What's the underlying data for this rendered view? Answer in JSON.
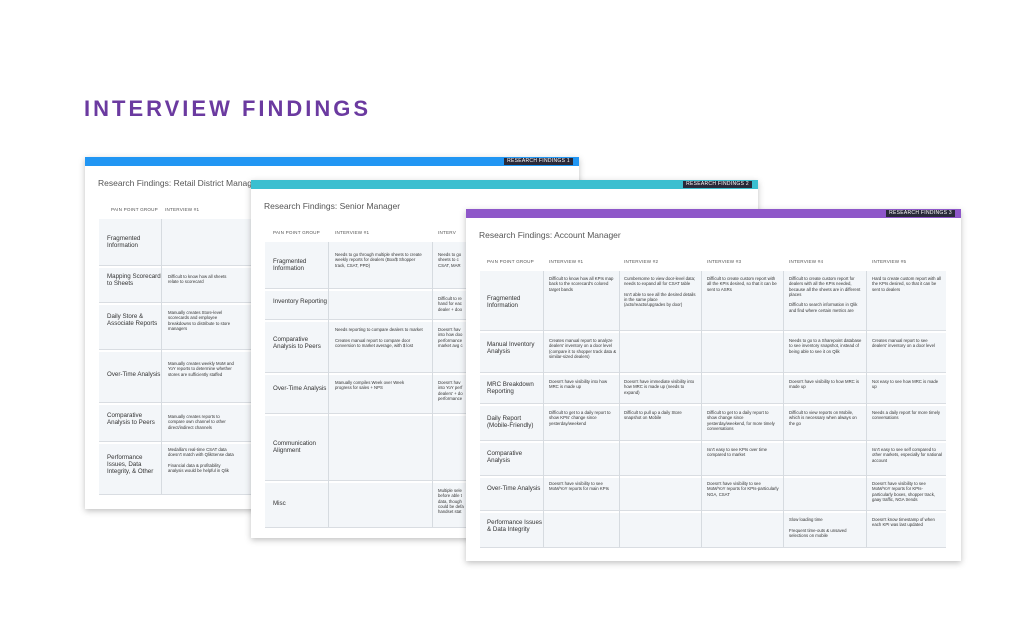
{
  "page_title": "INTERVIEW FINDINGS",
  "card1": {
    "badge": "RESEARCH FINDINGS 1",
    "title": "Research Findings: Retail District Manager",
    "headers": [
      "PAIN POINT GROUP",
      "INTERVIEW #1"
    ],
    "rows": [
      {
        "label": "Fragmented Information",
        "cells": [
          ""
        ]
      },
      {
        "label": "Mapping Scorecard to Sheets",
        "cells": [
          "Difficult to know how all sheets relate to scorecard"
        ]
      },
      {
        "label": "Daily Store & Associate Reports",
        "cells": [
          "Manually creates Store-level scorecards and employee breakdowns to distribute to store managers"
        ]
      },
      {
        "label": "Over-Time Analysis",
        "cells": [
          "Manually creates weekly MoM and YoY reports to determine whether stores are sufficiently staffed"
        ]
      },
      {
        "label": "Comparative Analysis to Peers",
        "cells": [
          "Manually creates reports to compare own channel to other direct/indirect channels"
        ]
      },
      {
        "label": "Performance Issues, Data Integrity, & Other",
        "cells": [
          "Medallia's real-time CSAT data doesn't match with QlikSense data\n\nFinancial data & profitability analysis would be helpful in Qlik"
        ]
      }
    ]
  },
  "card2": {
    "badge": "RESEARCH FINDINGS 2",
    "title": "Research Findings: Senior Manager",
    "headers": [
      "PAIN POINT GROUP",
      "INTERVIEW #1",
      "INTERV"
    ],
    "rows": [
      {
        "label": "Fragmented Information",
        "cells": [
          "Needs to go through multiple sheets to create weekly reports for dealers (Box/$ Shopper track, CSAT, PPD)",
          "Needs to go\nsheets to c\nCSAT, MAR"
        ]
      },
      {
        "label": "Inventory Reporting",
        "cells": [
          "",
          "Difficult to re\nhand for eac\ndealer + doo"
        ]
      },
      {
        "label": "Comparative Analysis to Peers",
        "cells": [
          "Needs reporting to compare dealers to market\n\nCreates manual report to compare door conversion to market average, with $ lost",
          "Doesn't hav\ninto how doo\nperformance\nmarket avg c"
        ]
      },
      {
        "label": "Over-Time Analysis",
        "cells": [
          "Manually compiles Week over Week progress for sales + NPS",
          "Doesn't hav\ninto YoY perf\ndealers' + do\nperformance"
        ]
      },
      {
        "label": "Communication Alignment",
        "cells": [
          "",
          ""
        ]
      },
      {
        "label": "Misc",
        "cells": [
          "",
          "Multiple sele\nbefore able t\ndata, though\ncould be defa\nhandset stat"
        ]
      }
    ]
  },
  "card3": {
    "badge": "RESEARCH FINDINGS 3",
    "title": "Research Findings: Account Manager",
    "headers": [
      "PAIN POINT GROUP",
      "INTERVIEW #1",
      "INTERVIEW #2",
      "INTERVIEW #3",
      "INTERVIEW #4",
      "INTERVIEW #5"
    ],
    "rows": [
      {
        "label": "Fragmented Information",
        "cells": [
          "Difficult to know how all KPIs map back to the scorecard's colored target bands",
          "Cumbersome to view door-level data; needs to expand all for CSAT table\n\nIsn't able to see all the desired details in the same place (acts/reacts/upgrades by door)",
          "Difficult to create custom report with all the KPIs desired, so that it can be sent to ASRs",
          "Difficult to create custom report for dealers with all the KPIs needed, because all the sheets are in different places\n\nDifficult to search information in Qlik and find where certain metrics are",
          "Hard to create custom report with all the KPIs desired, so that it can be sent to dealers"
        ]
      },
      {
        "label": "Manual Inventory Analysis",
        "cells": [
          "Creates manual report to analyze dealers' inventory on a door level (compare it to shopper track data & similar-sized dealers)",
          "",
          "",
          "Needs to go to a Sharepoint database to see inventory snapshot, instead of being able to see it on Qlik",
          "Creates manual report to see dealers' inventory on a door level"
        ]
      },
      {
        "label": "MRC Breakdown Reporting",
        "cells": [
          "Doesn't have visibility into how MRC is made up",
          "Doesn't have immediate visibility into how MRC is made up (needs to expand)",
          "",
          "Doesn't have visibility to how MRC is made up",
          "Not easy to see how MRC is made up"
        ]
      },
      {
        "label": "Daily Report (Mobile-Friendly)",
        "cells": [
          "Difficult to get to a daily report to show KPIs' change since yesterday/weekend",
          "Difficult to pull up a daily Store snapshot on Mobile",
          "Difficult to get to a daily report to show change since yesterday/weekend, for more timely conversations",
          "Difficult to view reports on Mobile, which is necessary when always on the go",
          "Needs a daily report for more timely conversations"
        ]
      },
      {
        "label": "Comparative Analysis",
        "cells": [
          "",
          "",
          "Isn't easy to see KPIs over time compared to market",
          "",
          "Isn't easy to see self compared to other markets, especially for national account"
        ]
      },
      {
        "label": "Over-Time Analysis",
        "cells": [
          "Doesn't have visibility to see MoM/YoY reports for main KPIs",
          "",
          "Doesn't have visibility to see MoM/YoY reports for KPIs-particularly NGA, CSAT",
          "",
          "Doesn't have visibility to see MoM/YoY reports for KPIs-particularly boxes, shopper track, gaay traffic, NGA trends"
        ]
      },
      {
        "label": "Performance Issues & Data Integrity",
        "cells": [
          "",
          "",
          "",
          "Slow loading time\n\nFrequent time-outs & unsaved selections on mobile",
          "Doesn't know timestamp of when each KPI was last updated"
        ]
      }
    ]
  }
}
